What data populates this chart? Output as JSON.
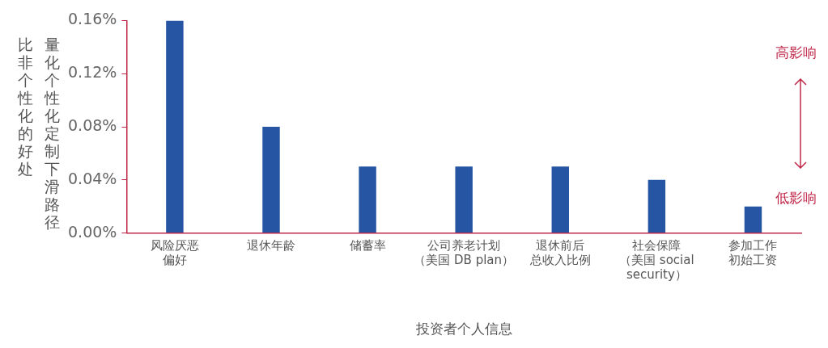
{
  "chart_data": {
    "type": "bar",
    "xlabel": "投资者个人信息",
    "ylabel": "量化个性化定制下滑路径比非个性化的好处",
    "categories": [
      "风险厌恶偏好",
      "退休年龄",
      "储蓄率",
      "公司养老计划（美国 DB plan）",
      "退休前后总收入比例",
      "社会保障（美国 social security）",
      "参加工作初始工资"
    ],
    "values": [
      0.16,
      0.08,
      0.05,
      0.05,
      0.05,
      0.04,
      0.02
    ],
    "color": "#2655a3",
    "ylim": [
      0,
      0.16
    ],
    "yticks": [
      {
        "value": 0,
        "label": "0.00%"
      },
      {
        "value": 0.04,
        "label": "0.04%"
      },
      {
        "value": 0.08,
        "label": "0.08%"
      },
      {
        "value": 0.12,
        "label": "0.12%"
      },
      {
        "value": 0.16,
        "label": "0.16%"
      }
    ],
    "grid": false,
    "legend": false,
    "annotations": [
      "高影响",
      "低影响"
    ]
  }
}
